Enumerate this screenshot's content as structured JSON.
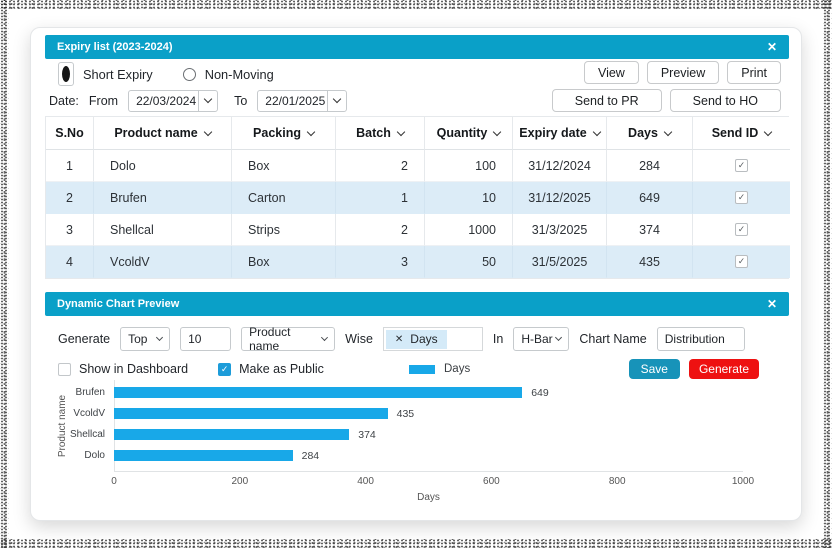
{
  "icons": {
    "close": "✕",
    "check": "✓",
    "remove": "✕",
    "sort": "chevron-down",
    "dropdown": "chevron-down"
  },
  "colors": {
    "titlebar": "#0aa0c8",
    "titlebar_text": "#ffffff",
    "row_alt": "#dcecf7",
    "bar": "#18a8e8",
    "save_button": "#1793b9",
    "generate_button": "#ee1111",
    "checkbox_checked": "#1d9cd9",
    "chip_bg": "#d4eaf8",
    "border_input": "#c6cacd",
    "border_table": "#e6e9ec",
    "text_primary": "#1f2328",
    "text_muted": "#555555"
  },
  "expiry_panel": {
    "title": "Expiry list (2023-2024)",
    "radio_options": [
      {
        "label": "Short Expiry",
        "selected": true
      },
      {
        "label": "Non-Moving",
        "selected": false
      }
    ],
    "action_buttons_row1": [
      "View",
      "Preview",
      "Print"
    ],
    "action_buttons_row2": [
      "Send to PR",
      "Send to HO"
    ],
    "date_filter": {
      "label": "Date:",
      "from_label": "From",
      "from_value": "22/03/2024",
      "to_label": "To",
      "to_value": "22/01/2025"
    },
    "table": {
      "columns": [
        {
          "label": "S.No",
          "sortable": false
        },
        {
          "label": "Product name",
          "sortable": true
        },
        {
          "label": "Packing",
          "sortable": true
        },
        {
          "label": "Batch",
          "sortable": true
        },
        {
          "label": "Quantity",
          "sortable": true
        },
        {
          "label": "Expiry date",
          "sortable": true
        },
        {
          "label": "Days",
          "sortable": true
        },
        {
          "label": "Send ID",
          "sortable": true
        }
      ],
      "rows": [
        {
          "sno": "1",
          "product": "Dolo",
          "packing": "Box",
          "batch": "2",
          "quantity": "100",
          "expiry": "31/12/2024",
          "days": "284",
          "send_id": true
        },
        {
          "sno": "2",
          "product": "Brufen",
          "packing": "Carton",
          "batch": "1",
          "quantity": "10",
          "expiry": "31/12/2025",
          "days": "649",
          "send_id": true
        },
        {
          "sno": "3",
          "product": "Shellcal",
          "packing": "Strips",
          "batch": "2",
          "quantity": "1000",
          "expiry": "31/3/2025",
          "days": "374",
          "send_id": true
        },
        {
          "sno": "4",
          "product": "VcoldV",
          "packing": "Box",
          "batch": "3",
          "quantity": "50",
          "expiry": "31/5/2025",
          "days": "435",
          "send_id": true
        }
      ]
    }
  },
  "chart_panel": {
    "title": "Dynamic Chart Preview",
    "controls": {
      "generate_label": "Generate",
      "top_select": "Top",
      "count_value": "10",
      "field_select": "Product name",
      "wise_label": "Wise",
      "wise_chip": {
        "remove_icon": "✕",
        "label": "Days"
      },
      "in_label": "In",
      "type_select": "H-Bar",
      "chart_name_label": "Chart Name",
      "chart_name_value": "Distribution"
    },
    "checkboxes": [
      {
        "label": "Show in Dashboard",
        "checked": false
      },
      {
        "label": "Make as Public",
        "checked": true
      }
    ],
    "legend": {
      "label": "Days",
      "color": "#18a8e8"
    },
    "save_button": "Save",
    "generate_button": "Generate"
  },
  "chart_data": {
    "type": "bar",
    "orientation": "horizontal",
    "title": "",
    "categories": [
      "Brufen",
      "VcoldV",
      "Shellcal",
      "Dolo"
    ],
    "values": [
      649,
      435,
      374,
      284
    ],
    "series_name": "Days",
    "xlabel": "Days",
    "ylabel": "Product name",
    "xlim": [
      0,
      1000
    ],
    "xticks": [
      0,
      200,
      400,
      600,
      800,
      1000
    ],
    "bar_color": "#18a8e8",
    "grid": false,
    "legend_position": "top"
  }
}
